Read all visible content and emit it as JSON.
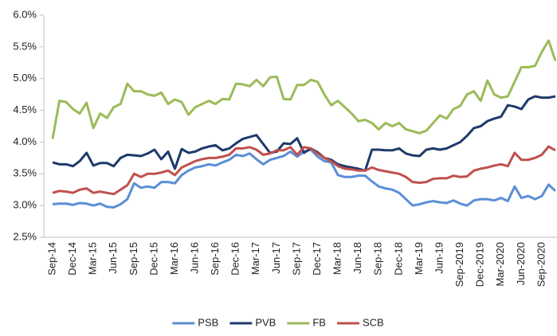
{
  "chart_data": {
    "type": "line",
    "categories": [
      "Sep-14",
      null,
      null,
      "Dec-14",
      null,
      null,
      "Mar-15",
      null,
      null,
      "Jun-15",
      null,
      null,
      "Sep-15",
      null,
      null,
      "Dec-15",
      null,
      null,
      "Mar-16",
      null,
      null,
      "Jun-16",
      null,
      null,
      "Sep-16",
      null,
      null,
      "Dec-16",
      null,
      null,
      "Mar-17",
      null,
      null,
      "Jun-17",
      null,
      null,
      "Sep-17",
      null,
      null,
      "Dec-17",
      null,
      null,
      "Mar-18",
      null,
      null,
      "Jun-18",
      null,
      null,
      "Sep-18",
      null,
      null,
      "Dec-18",
      null,
      null,
      "Mar-19",
      null,
      null,
      "Jun-19",
      null,
      null,
      "Sep-2019",
      null,
      null,
      "Dec-2019",
      null,
      null,
      "Mar-2020",
      null,
      null,
      "Jun-2020",
      null,
      null,
      "Sep-2020",
      null,
      null
    ],
    "series": [
      {
        "name": "PSB",
        "color": "#5b8ed6",
        "values": [
          3.02,
          3.03,
          3.03,
          3.01,
          3.04,
          3.03,
          3.0,
          3.03,
          2.98,
          2.97,
          3.02,
          3.1,
          3.35,
          3.28,
          3.3,
          3.28,
          3.37,
          3.37,
          3.35,
          3.48,
          3.55,
          3.6,
          3.62,
          3.65,
          3.63,
          3.68,
          3.72,
          3.8,
          3.78,
          3.82,
          3.73,
          3.65,
          3.72,
          3.75,
          3.78,
          3.85,
          3.77,
          3.85,
          3.88,
          3.77,
          3.7,
          3.68,
          3.48,
          3.45,
          3.45,
          3.47,
          3.47,
          3.38,
          3.3,
          3.27,
          3.25,
          3.2,
          3.1,
          3.0,
          3.02,
          3.05,
          3.07,
          3.05,
          3.04,
          3.08,
          3.03,
          3.0,
          3.08,
          3.1,
          3.1,
          3.08,
          3.12,
          3.07,
          3.3,
          3.12,
          3.15,
          3.1,
          3.15,
          3.33,
          3.23
        ]
      },
      {
        "name": "PVB",
        "color": "#1f3a6b",
        "values": [
          3.68,
          3.65,
          3.65,
          3.62,
          3.7,
          3.83,
          3.63,
          3.67,
          3.67,
          3.62,
          3.75,
          3.8,
          3.79,
          3.78,
          3.82,
          3.88,
          3.73,
          3.85,
          3.58,
          3.89,
          3.83,
          3.85,
          3.9,
          3.93,
          3.95,
          3.87,
          3.9,
          3.98,
          4.05,
          4.08,
          4.11,
          3.97,
          3.83,
          3.85,
          3.98,
          3.97,
          4.06,
          3.83,
          3.9,
          3.84,
          3.75,
          3.72,
          3.65,
          3.62,
          3.6,
          3.58,
          3.55,
          3.88,
          3.88,
          3.87,
          3.87,
          3.9,
          3.82,
          3.79,
          3.78,
          3.88,
          3.9,
          3.88,
          3.9,
          3.95,
          4.0,
          4.1,
          4.22,
          4.25,
          4.33,
          4.37,
          4.4,
          4.58,
          4.56,
          4.52,
          4.67,
          4.72,
          4.7,
          4.7,
          4.72
        ]
      },
      {
        "name": "FB",
        "color": "#9bbb59",
        "values": [
          4.05,
          4.65,
          4.63,
          4.52,
          4.45,
          4.62,
          4.22,
          4.45,
          4.38,
          4.55,
          4.6,
          4.92,
          4.8,
          4.8,
          4.75,
          4.73,
          4.78,
          4.6,
          4.67,
          4.63,
          4.43,
          4.55,
          4.6,
          4.65,
          4.6,
          4.68,
          4.67,
          4.92,
          4.91,
          4.88,
          4.98,
          4.88,
          5.02,
          5.03,
          4.68,
          4.67,
          4.9,
          4.9,
          4.98,
          4.95,
          4.75,
          4.58,
          4.65,
          4.55,
          4.45,
          4.33,
          4.35,
          4.3,
          4.2,
          4.3,
          4.25,
          4.3,
          4.2,
          4.17,
          4.14,
          4.18,
          4.3,
          4.42,
          4.37,
          4.52,
          4.57,
          4.75,
          4.8,
          4.65,
          4.97,
          4.75,
          4.7,
          4.72,
          4.95,
          5.18,
          5.18,
          5.2,
          5.42,
          5.6,
          5.28
        ]
      },
      {
        "name": "SCB",
        "color": "#c0504d",
        "values": [
          3.2,
          3.23,
          3.22,
          3.2,
          3.25,
          3.27,
          3.2,
          3.22,
          3.2,
          3.18,
          3.25,
          3.32,
          3.5,
          3.45,
          3.5,
          3.5,
          3.52,
          3.55,
          3.48,
          3.6,
          3.65,
          3.7,
          3.73,
          3.75,
          3.75,
          3.77,
          3.8,
          3.9,
          3.9,
          3.92,
          3.88,
          3.8,
          3.82,
          3.87,
          3.87,
          3.92,
          3.8,
          3.92,
          3.9,
          3.82,
          3.75,
          3.7,
          3.62,
          3.58,
          3.57,
          3.55,
          3.55,
          3.6,
          3.56,
          3.54,
          3.52,
          3.5,
          3.45,
          3.37,
          3.36,
          3.37,
          3.42,
          3.43,
          3.43,
          3.47,
          3.45,
          3.46,
          3.55,
          3.58,
          3.6,
          3.63,
          3.65,
          3.62,
          3.83,
          3.72,
          3.72,
          3.75,
          3.8,
          3.93,
          3.87
        ]
      }
    ],
    "ylim": [
      2.5,
      6.0
    ],
    "yticks": [
      {
        "value": 2.5,
        "label": "2.5%"
      },
      {
        "value": 3.0,
        "label": "3.0%"
      },
      {
        "value": 3.5,
        "label": "3.5%"
      },
      {
        "value": 4.0,
        "label": "4.0%"
      },
      {
        "value": 4.5,
        "label": "4.5%"
      },
      {
        "value": 5.0,
        "label": "5.0%"
      },
      {
        "value": 5.5,
        "label": "5.5%"
      },
      {
        "value": 6.0,
        "label": "6.0%"
      }
    ],
    "grid": false
  }
}
